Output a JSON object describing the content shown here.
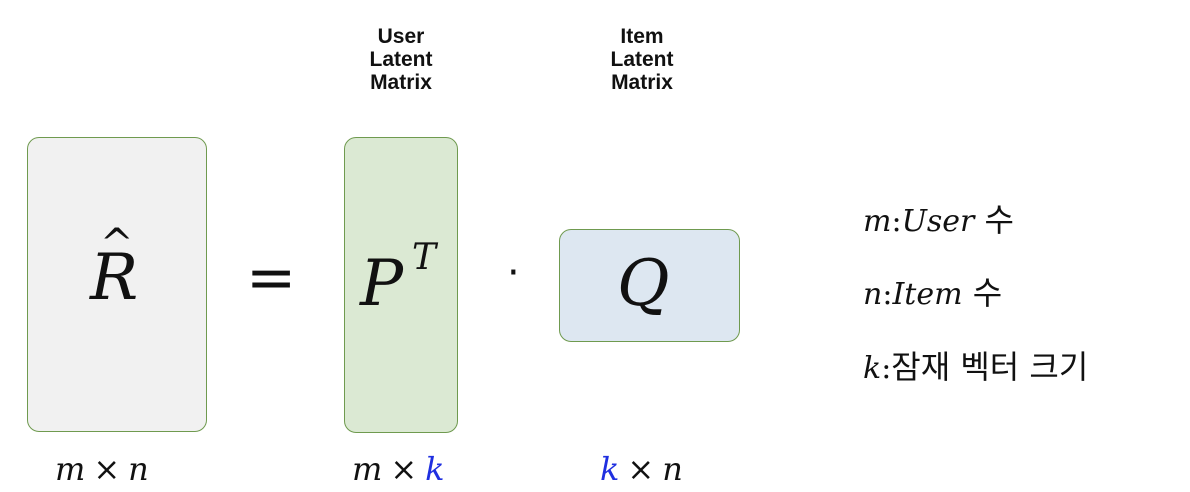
{
  "matrices": {
    "r_hat": {
      "symbol": "R",
      "hat": "^",
      "dim": {
        "a": "m",
        "op": "×",
        "b": "n"
      }
    },
    "p": {
      "label": "User\nLatent\nMatrix",
      "symbol": "P",
      "sup": "T",
      "dim": {
        "a": "m",
        "op": "×",
        "b": "k"
      }
    },
    "q": {
      "label": "Item\nLatent\nMatrix",
      "symbol": "Q",
      "dim": {
        "a": "k",
        "op": "×",
        "b": "n"
      }
    }
  },
  "operators": {
    "equals": "=",
    "dot": "·"
  },
  "legend": [
    {
      "var": "m",
      "colon": ":",
      "word": "User",
      "kor": " 수"
    },
    {
      "var": "n",
      "colon": ":",
      "word": "Item",
      "kor": " 수"
    },
    {
      "var": "k",
      "colon": ":",
      "word": "",
      "kor": "잠재 벡터 크기"
    }
  ],
  "colors": {
    "r_box_fill": "#f1f1f1",
    "p_box_fill": "#dbe9d3",
    "q_box_fill": "#dde7f1",
    "box_border": "#6f9a4f",
    "highlight": "#1f2fe0"
  }
}
